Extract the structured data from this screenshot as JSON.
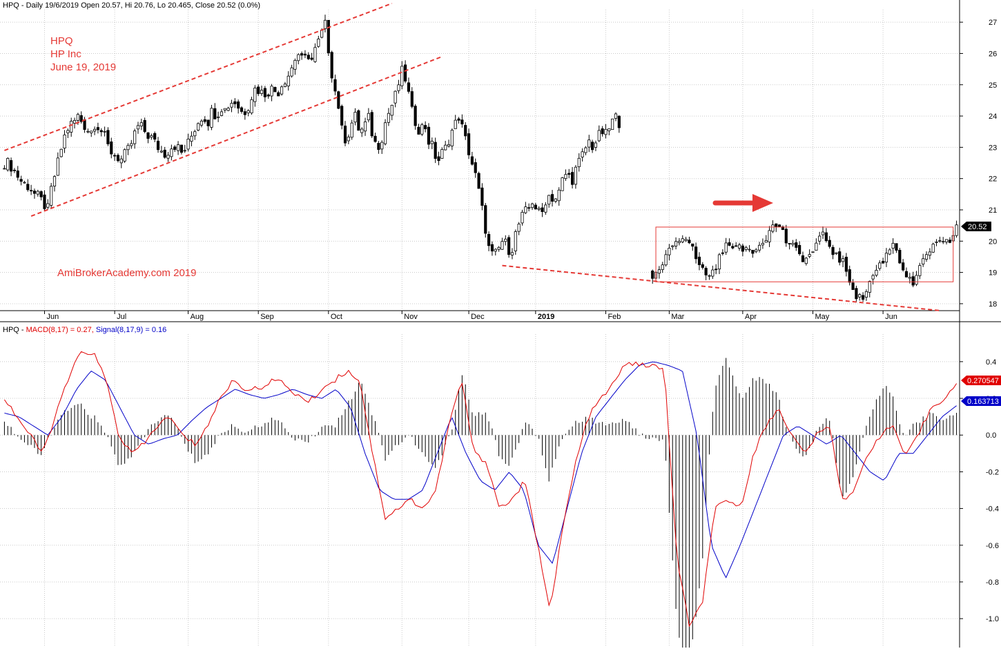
{
  "header": {
    "price": "HPQ - Daily 19/6/2019 Open 20.57, Hi 20.76, Lo 20.465, Close 20.52 (0.0%)",
    "macd_prefix": "HPQ - ",
    "macd_name": "MACD(8,17) = 0.27,",
    "signal_name": "Signal(8,17,9) = 0.16"
  },
  "annotations": {
    "ticker": "HPQ",
    "company": "HP Inc",
    "date": "June 19, 2019",
    "watermark": "AmiBrokerAcademy.com  2019"
  },
  "badges": {
    "close": "20.52",
    "macd": "0.270547",
    "signal": "0.163713"
  },
  "colors": {
    "macd": "#e00000",
    "signal": "#0000c8",
    "annotation": "#e53935",
    "grid": "#c8c8c8"
  },
  "chart_data": [
    {
      "type": "candlestick",
      "title": "HPQ - Daily 19/6/2019",
      "ylim": [
        17.8,
        27.4
      ],
      "yticks": [
        18,
        19,
        20,
        21,
        22,
        23,
        24,
        25,
        26,
        27
      ],
      "x_months": [
        "Jun",
        "Jul",
        "Aug",
        "Sep",
        "Oct",
        "Nov",
        "Dec",
        "2019",
        "Feb",
        "Mar",
        "Apr",
        "May",
        "Jun"
      ],
      "grid": true,
      "path_y_daily": [
        22.5,
        22.5,
        22.3,
        22.1,
        21.9,
        21.8,
        21.7,
        21.5,
        21.4,
        21.2,
        21.0,
        21.8,
        22.3,
        22.9,
        23.4,
        23.7,
        23.8,
        24.0,
        23.8,
        23.6,
        23.5,
        23.8,
        23.6,
        23.4,
        23.0,
        22.8,
        22.7,
        22.6,
        22.8,
        23.0,
        23.4,
        23.7,
        23.6,
        23.4,
        23.3,
        23.1,
        22.9,
        22.8,
        22.9,
        23.1,
        23.0,
        22.8,
        23.0,
        23.3,
        23.6,
        23.9,
        24.0,
        23.8,
        24.2,
        24.0,
        24.3,
        24.2,
        24.4,
        24.5,
        24.3,
        24.1,
        24.2,
        24.6,
        24.9,
        24.8,
        24.7,
        24.8,
        24.9,
        24.7,
        25.0,
        25.2,
        25.4,
        25.8,
        26.0,
        25.7,
        26.0,
        25.8,
        26.2,
        26.5,
        27.0,
        26.0,
        25.0,
        24.5,
        23.5,
        23.2,
        23.7,
        24.0,
        23.5,
        23.6,
        24.0,
        23.4,
        23.0,
        23.2,
        23.8,
        24.2,
        24.5,
        25.0,
        25.5,
        25.0,
        24.2,
        23.8,
        23.5,
        23.8,
        23.2,
        23.0,
        22.5,
        22.8,
        23.0,
        23.4,
        23.7,
        24.0,
        23.5,
        23.0,
        22.5,
        22.0,
        21.3,
        20.5,
        19.7,
        19.5,
        19.7,
        20.0,
        19.9,
        19.6,
        20.2,
        20.6,
        20.9,
        21.0,
        21.3,
        21.0,
        20.8,
        21.3,
        21.5,
        21.3,
        21.5,
        22.0,
        22.2,
        21.9,
        22.3,
        22.6,
        22.9,
        23.2,
        23.0,
        23.3,
        23.5,
        23.4,
        23.7,
        24.0,
        23.8
      ],
      "path_y_daily_2019_rangebox": [
        20.1,
        19.8,
        19.6,
        19.3,
        19.0,
        18.8,
        19.1,
        19.5,
        19.9,
        20.1,
        20.2,
        19.8,
        19.3,
        19.0,
        18.9,
        19.3,
        19.7,
        20.0,
        19.8,
        19.7,
        19.8,
        19.7,
        20.0,
        20.2,
        20.5,
        20.5,
        20.0,
        19.8,
        19.6,
        19.4,
        19.6,
        20.0,
        20.2,
        19.8,
        19.5,
        19.3,
        18.8,
        18.3,
        18.1,
        18.6,
        19.0,
        19.3,
        19.6,
        20.0,
        19.4,
        18.9,
        18.6,
        19.0,
        19.5,
        19.8,
        19.9,
        19.9,
        20.0,
        20.52
      ],
      "trend_lines": [
        {
          "desc": "upper channel",
          "from": [
            0,
            22.9
          ],
          "to": [
            116,
            27.6
          ]
        },
        {
          "desc": "lower channel",
          "from": [
            8,
            20.8
          ],
          "to": [
            131,
            25.9
          ]
        },
        {
          "desc": "support line",
          "from": [
            149,
            19.22
          ],
          "to": [
            280,
            17.78
          ]
        }
      ],
      "range_box": {
        "bar_from": 195,
        "bar_to": 284,
        "low": 18.7,
        "high": 20.45
      },
      "close": 20.52
    },
    {
      "type": "line",
      "title": "HPQ - MACD(8,17) = 0.27, Signal(8,17,9) = 0.16",
      "ylim": [
        -1.15,
        0.55
      ],
      "yticks": [
        0.4,
        0.2,
        0.0,
        -0.2,
        -0.4,
        -0.6,
        -0.8,
        -1.0
      ],
      "series": [
        {
          "name": "MACD(8,17)",
          "color": "#e00000",
          "values": [
            0.2,
            0.1,
            0.0,
            -0.1,
            0.1,
            0.3,
            0.45,
            0.45,
            0.3,
            0.0,
            -0.1,
            -0.05,
            0.05,
            0.1,
            0.0,
            -0.05,
            0.05,
            0.2,
            0.3,
            0.25,
            0.25,
            0.3,
            0.28,
            0.22,
            0.18,
            0.25,
            0.3,
            0.35,
            0.3,
            -0.1,
            -0.45,
            -0.4,
            -0.35,
            -0.4,
            -0.3,
            0.05,
            0.3,
            -0.1,
            -0.15,
            -0.4,
            -0.35,
            -0.25,
            -0.6,
            -0.95,
            -0.5,
            -0.15,
            0.1,
            0.2,
            0.28,
            0.4,
            0.38,
            0.38,
            0.35,
            -0.7,
            -1.05,
            -0.9,
            -0.4,
            -0.35,
            -0.4,
            -0.1,
            0.05,
            0.15,
            0.0,
            -0.1,
            0.0,
            0.05,
            -0.35,
            -0.3,
            -0.1,
            0.0,
            0.05,
            -0.12,
            0.0,
            0.15,
            0.2,
            0.27
          ]
        },
        {
          "name": "Signal(8,17,9)",
          "color": "#0000c8",
          "values": [
            0.12,
            0.1,
            0.05,
            0.0,
            0.1,
            0.25,
            0.35,
            0.3,
            0.15,
            0.0,
            -0.05,
            -0.02,
            0.0,
            0.08,
            0.15,
            0.2,
            0.25,
            0.22,
            0.2,
            0.22,
            0.25,
            0.22,
            0.2,
            0.25,
            0.15,
            -0.1,
            -0.3,
            -0.35,
            -0.35,
            -0.3,
            -0.1,
            0.1,
            -0.1,
            -0.25,
            -0.3,
            -0.2,
            -0.3,
            -0.6,
            -0.7,
            -0.4,
            -0.1,
            0.1,
            0.2,
            0.3,
            0.38,
            0.4,
            0.38,
            0.35,
            0.0,
            -0.6,
            -0.78,
            -0.6,
            -0.4,
            -0.2,
            0.0,
            0.05,
            0.0,
            -0.05,
            0.0,
            -0.1,
            -0.2,
            -0.25,
            -0.1,
            -0.1,
            0.0,
            0.1,
            0.16
          ]
        }
      ],
      "histogram": "MACD minus Signal, black bars"
    }
  ]
}
